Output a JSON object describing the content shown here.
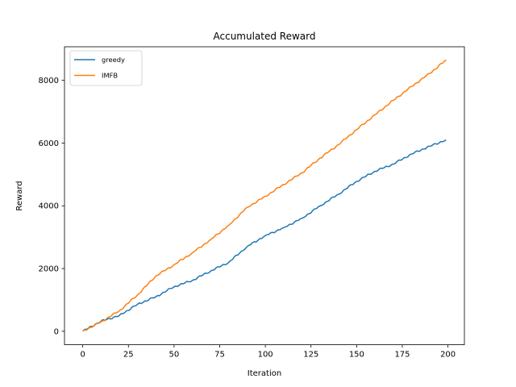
{
  "chart_data": {
    "type": "line",
    "title": "Accumulated Reward",
    "xlabel": "Iteration",
    "ylabel": "Reward",
    "xlim": [
      -10,
      209
    ],
    "ylim": [
      -430,
      9070
    ],
    "xticks": [
      0,
      25,
      50,
      75,
      100,
      125,
      150,
      175,
      200
    ],
    "yticks": [
      0,
      2000,
      4000,
      6000,
      8000
    ],
    "grid": false,
    "legend_position": "top-left",
    "x": [
      0,
      10,
      20,
      30,
      40,
      50,
      60,
      70,
      80,
      90,
      100,
      110,
      120,
      130,
      140,
      150,
      160,
      170,
      180,
      190,
      199
    ],
    "series": [
      {
        "name": "greedy",
        "color": "#1f77b4",
        "values": [
          0,
          320,
          500,
          860,
          1100,
          1420,
          1620,
          1920,
          2200,
          2700,
          3050,
          3300,
          3600,
          4000,
          4370,
          4780,
          5100,
          5330,
          5650,
          5900,
          6100
        ]
      },
      {
        "name": "IMFB",
        "color": "#ff7f0e",
        "values": [
          0,
          300,
          650,
          1160,
          1760,
          2120,
          2500,
          2920,
          3380,
          3950,
          4300,
          4680,
          5050,
          5520,
          5950,
          6430,
          6900,
          7360,
          7800,
          8220,
          8650
        ]
      }
    ]
  }
}
